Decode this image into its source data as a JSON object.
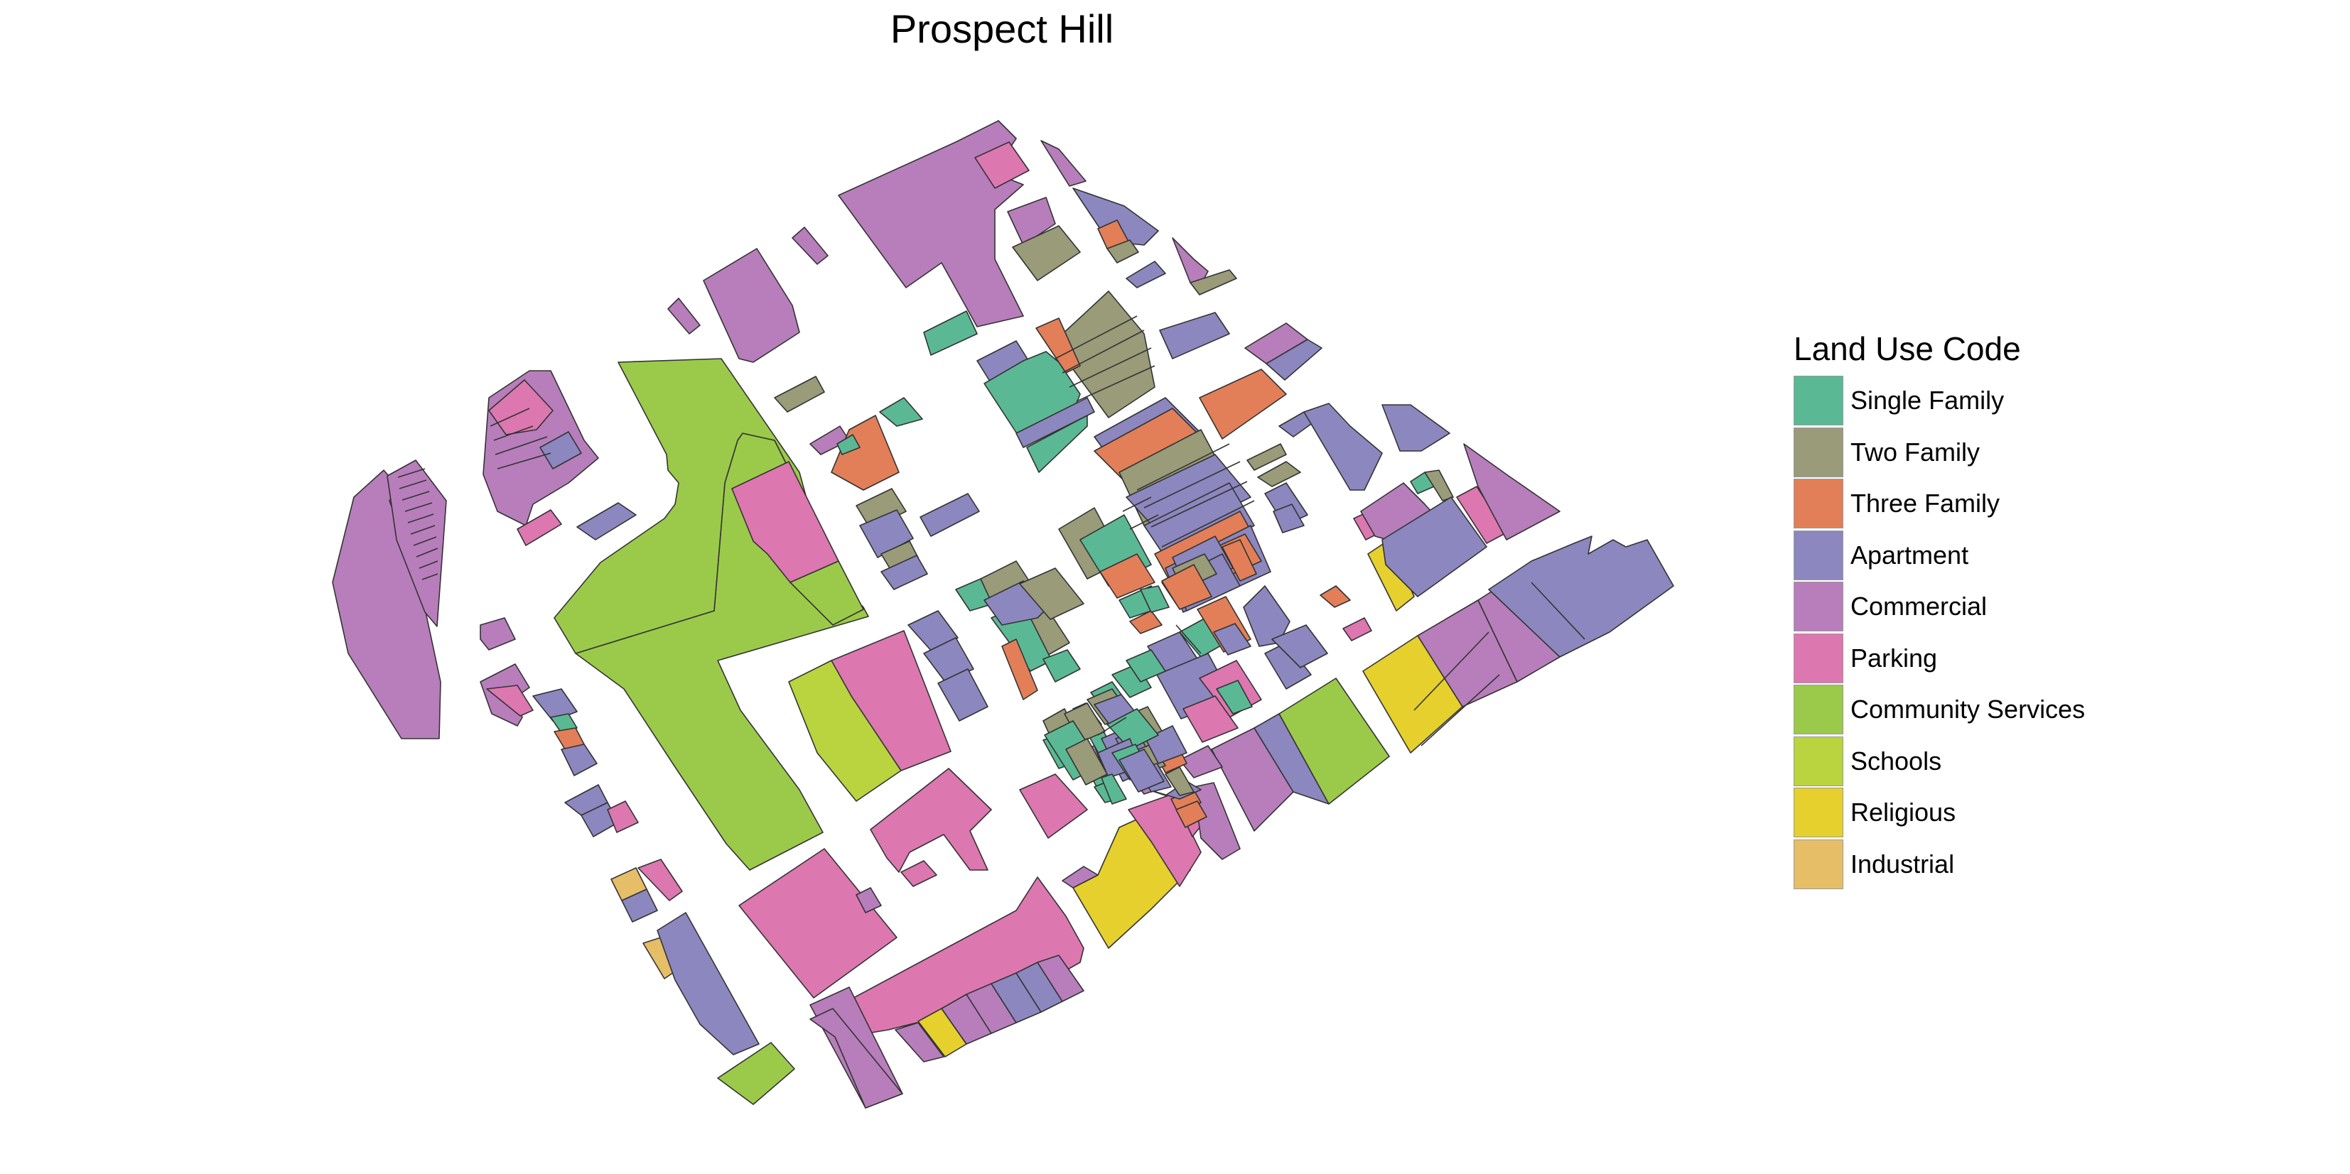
{
  "map_title": "Prospect Hill",
  "legend": {
    "title": "Land Use Code",
    "items": [
      {
        "key": "single",
        "label": "Single Family",
        "color": "#5AB994"
      },
      {
        "key": "two",
        "label": "Two Family",
        "color": "#999B79"
      },
      {
        "key": "three",
        "label": "Three Family",
        "color": "#E27F58"
      },
      {
        "key": "apt",
        "label": "Apartment",
        "color": "#8C87BE"
      },
      {
        "key": "comm",
        "label": "Commercial",
        "color": "#B77EBB"
      },
      {
        "key": "park",
        "label": "Parking",
        "color": "#DD77B0"
      },
      {
        "key": "cs",
        "label": "Community Services",
        "color": "#9BCA4A"
      },
      {
        "key": "school",
        "label": "Schools",
        "color": "#B9D43E"
      },
      {
        "key": "rel",
        "label": "Religious",
        "color": "#E5D02E"
      },
      {
        "key": "ind",
        "label": "Industrial",
        "color": "#E6BE68"
      }
    ]
  }
}
